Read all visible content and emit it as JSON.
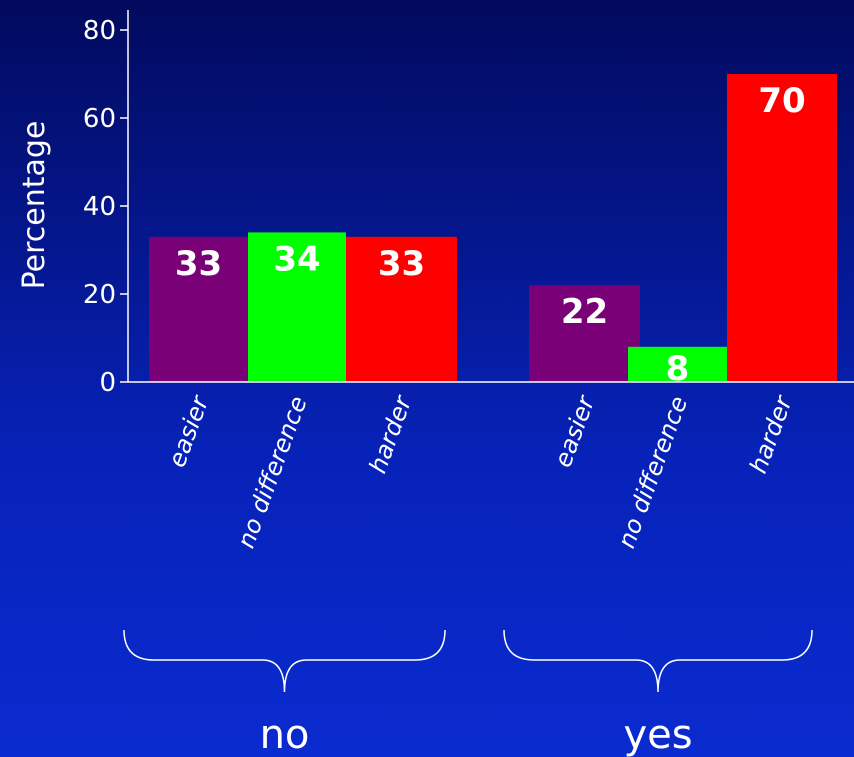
{
  "chart_data": {
    "type": "bar",
    "ylabel": "Percentage",
    "ylim": [
      0,
      80
    ],
    "yticks": [
      0,
      20,
      40,
      60,
      80
    ],
    "grid": false,
    "legend": "none",
    "groups": [
      {
        "name": "no",
        "bars": [
          {
            "category": "easier",
            "value": 33,
            "label": "33",
            "color": "#7a0078"
          },
          {
            "category": "no difference",
            "value": 34,
            "label": "34",
            "color": "#00ff00"
          },
          {
            "category": "harder",
            "value": 33,
            "label": "33",
            "color": "#ff0000"
          }
        ]
      },
      {
        "name": "yes",
        "bars": [
          {
            "category": "easier",
            "value": 22,
            "label": "22",
            "color": "#7a0078"
          },
          {
            "category": "no difference",
            "value": 8,
            "label": "8",
            "color": "#00ff00"
          },
          {
            "category": "harder",
            "value": 70,
            "label": "70",
            "color": "#ff0000"
          }
        ]
      }
    ]
  }
}
